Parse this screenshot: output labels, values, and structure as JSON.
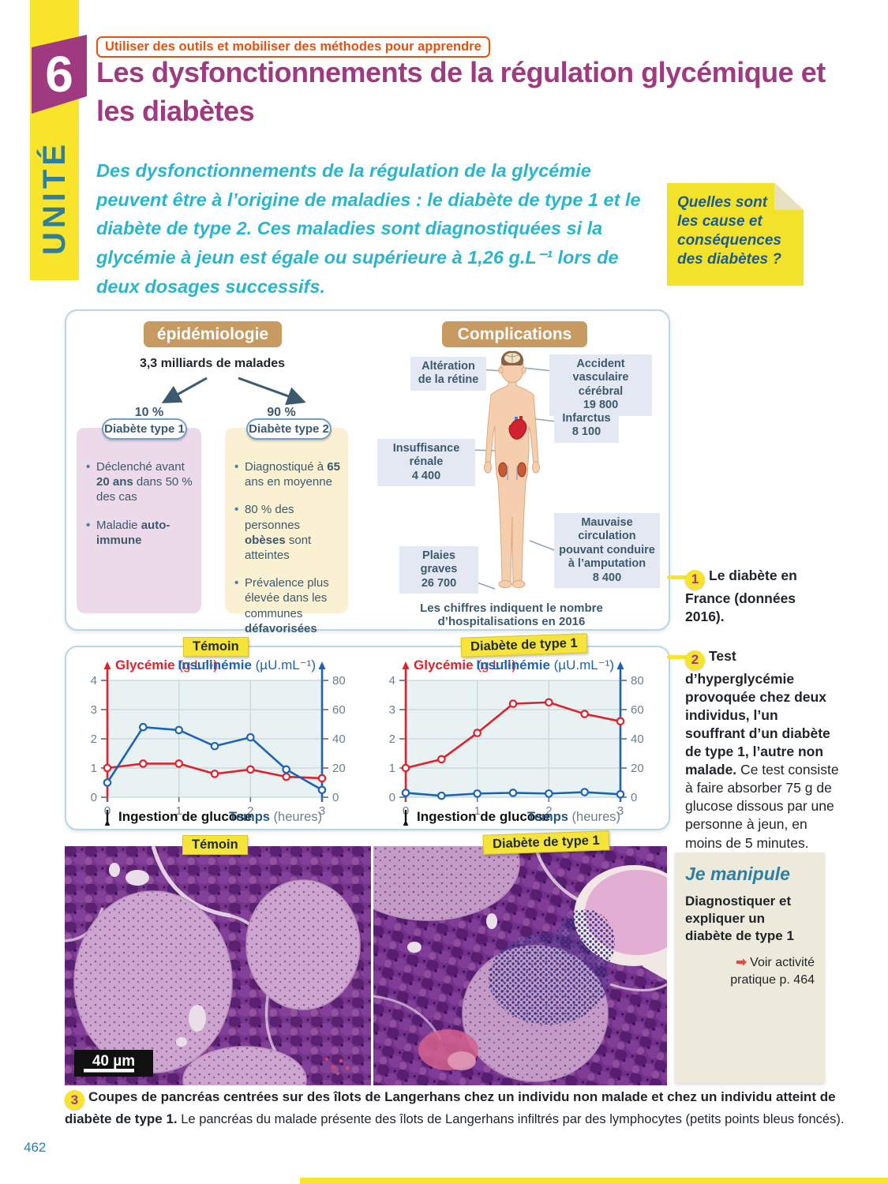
{
  "page": {
    "unit_number": "6",
    "unit_label": "UNITÉ",
    "method_badge": "Utiliser des outils et mobiliser des méthodes pour apprendre",
    "title": "Les dysfonctionnements de la régulation glycémique et les diabètes",
    "intro": "Des dysfonctionnements de la régulation de la glycémie peuvent être à l’origine de maladies : le diabète de type 1 et le diabète de type 2. Ces maladies sont diagnostiquées si la glycémie à jeun est égale ou supérieure à 1,26 g.L⁻¹ lors de deux dosages successifs.",
    "sticky_note": "Quelles sont les cause et conséquences des diabètes ?",
    "page_number": "462"
  },
  "figure1": {
    "number": "1",
    "caption": "Le diabète en France (données 2016).",
    "epidemiology": {
      "header": "épidémiologie",
      "total": "3,3 milliards de malades",
      "type1": {
        "percent": "10 %",
        "pill": "Diabète type 1",
        "bullets": [
          "Déclenché avant **20 ans** dans 50 % des cas",
          "Maladie **auto-immune**"
        ]
      },
      "type2": {
        "percent": "90 %",
        "pill": "Diabète type 2",
        "bullets": [
          "Diagnostiqué à **65** ans en moyenne",
          "80 % des personnes **obèses** sont atteintes",
          "Prévalence plus élevée dans les communes **défavorisées**"
        ]
      }
    },
    "complications": {
      "header": "Complications",
      "labels": {
        "retine": {
          "text": "Altération de la rétine",
          "value": ""
        },
        "avc": {
          "text": "Accident vasculaire cérébral",
          "value": "19 800"
        },
        "infarctus": {
          "text": "Infarctus",
          "value": "8 100"
        },
        "renale": {
          "text": "Insuffisance rénale",
          "value": "4 400"
        },
        "circulation": {
          "text": "Mauvaise circulation pouvant conduire à l’amputation",
          "value": "8 400"
        },
        "plaies": {
          "text": "Plaies graves",
          "value": "26 700"
        }
      },
      "footnote": "Les chiffres indiquent le nombre d’hospitalisations en 2016"
    }
  },
  "figure2": {
    "number": "2",
    "caption_bold": "Test d’hyperglycémie provoquée chez deux individus, l’un souffrant d’un diabète de type 1, l’autre non malade.",
    "caption_rest": " Ce test consiste à faire absorber 75 g de glucose dissous par une personne à jeun, en moins de 5 minutes."
  },
  "chart_data": [
    {
      "type": "line",
      "title": "Témoin",
      "x": [
        0,
        0.5,
        1,
        1.5,
        2,
        2.5,
        3
      ],
      "x_ticks": [
        0,
        1,
        2,
        3
      ],
      "xlabel_bold": "Temps",
      "xlabel_unit": " (heures)",
      "annotation": "Ingestion de glucose",
      "axes": {
        "left": {
          "label": "Glycémie ",
          "unit": "(g.L⁻¹)",
          "range": [
            0,
            4
          ],
          "ticks": [
            0,
            1,
            2,
            3,
            4
          ],
          "color": "#e31f2b"
        },
        "right": {
          "label": "Insulinémie ",
          "unit": "(µU.mL⁻¹)",
          "range": [
            0,
            80
          ],
          "ticks": [
            0,
            20,
            40,
            60,
            80
          ],
          "color": "#1c63b7"
        }
      },
      "series": [
        {
          "name": "Glycémie",
          "axis": "left",
          "color": "#e31f2b",
          "values": [
            1.0,
            1.15,
            1.15,
            0.8,
            0.95,
            0.7,
            0.65
          ]
        },
        {
          "name": "Insulinémie",
          "axis": "right",
          "color": "#1c63b7",
          "values": [
            10,
            48,
            46,
            35,
            41,
            19,
            5
          ]
        }
      ]
    },
    {
      "type": "line",
      "title": "Diabète de type 1",
      "x": [
        0,
        0.5,
        1,
        1.5,
        2,
        2.5,
        3
      ],
      "x_ticks": [
        0,
        1,
        2,
        3
      ],
      "xlabel_bold": "Temps",
      "xlabel_unit": " (heures)",
      "annotation": "Ingestion de glucose",
      "axes": {
        "left": {
          "label": "Glycémie ",
          "unit": "(g.L⁻¹)",
          "range": [
            0,
            4
          ],
          "ticks": [
            0,
            1,
            2,
            3,
            4
          ],
          "color": "#e31f2b"
        },
        "right": {
          "label": "Insulinémie ",
          "unit": "(µU.mL⁻¹)",
          "range": [
            0,
            80
          ],
          "ticks": [
            0,
            20,
            40,
            60,
            80
          ],
          "color": "#1c63b7"
        }
      },
      "series": [
        {
          "name": "Glycémie",
          "axis": "left",
          "color": "#e31f2b",
          "values": [
            1.0,
            1.3,
            2.2,
            3.2,
            3.25,
            2.85,
            2.6
          ]
        },
        {
          "name": "Insulinémie",
          "axis": "right",
          "color": "#1c63b7",
          "values": [
            3,
            1,
            2.5,
            3,
            2.5,
            3.5,
            2
          ]
        }
      ]
    }
  ],
  "figure3": {
    "number": "3",
    "labels": [
      "Témoin",
      "Diabète de type 1"
    ],
    "scale_bar": "40 µm",
    "caption_bold": "Coupes de pancréas centrées sur des îlots de Langerhans chez un individu non malade et chez un individu atteint de diabète de type 1.",
    "caption_rest": " Le pancréas du malade présente des îlots de Langerhans infiltrés par des lymphocytes (petits points bleus foncés)."
  },
  "je_manipule": {
    "title": "Je manipule",
    "body": "Diagnostiquer et expliquer un diabète de type 1",
    "link_arrow": "➡",
    "link_line1": " Voir activité",
    "link_line2": "pratique p. 464"
  },
  "colors": {
    "accent_yellow": "#f7e42b",
    "title_purple": "#a03a80",
    "intro_teal": "#29b6cd",
    "badge_orange": "#e8500f",
    "header_tan": "#c79a62",
    "glycemie_red": "#e31f2b",
    "insulinemie_blue": "#1c63b7"
  }
}
